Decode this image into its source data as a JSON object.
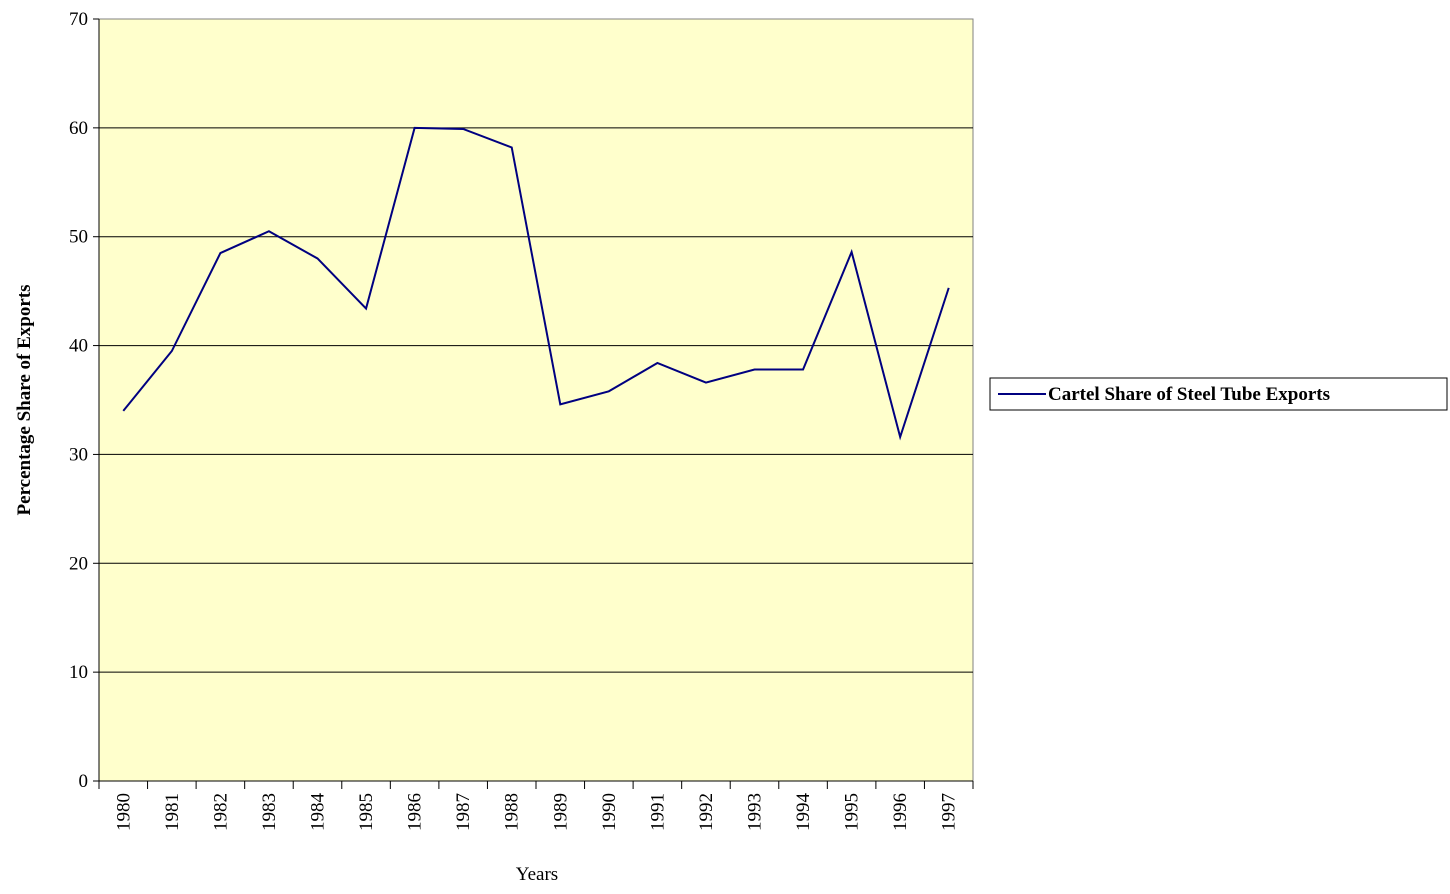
{
  "chart_data": {
    "type": "line",
    "x_label": "Years",
    "y_label": "Percentage Share of Exports",
    "categories": [
      "1980",
      "1981",
      "1982",
      "1983",
      "1984",
      "1985",
      "1986",
      "1987",
      "1988",
      "1989",
      "1990",
      "1991",
      "1992",
      "1993",
      "1994",
      "1995",
      "1996",
      "1997"
    ],
    "series": [
      {
        "name": "Cartel Share of Steel Tube Exports",
        "color": "#000080",
        "values": [
          34.0,
          39.5,
          48.5,
          50.5,
          48.0,
          43.4,
          60.0,
          59.9,
          58.2,
          34.6,
          35.8,
          38.4,
          36.6,
          37.8,
          37.8,
          48.6,
          31.6,
          45.3
        ]
      }
    ],
    "ylim": [
      0,
      70
    ],
    "yticks": [
      0,
      10,
      20,
      30,
      40,
      50,
      60,
      70
    ],
    "grid": true,
    "legend": "right",
    "plot_background": "#ffffcc"
  }
}
